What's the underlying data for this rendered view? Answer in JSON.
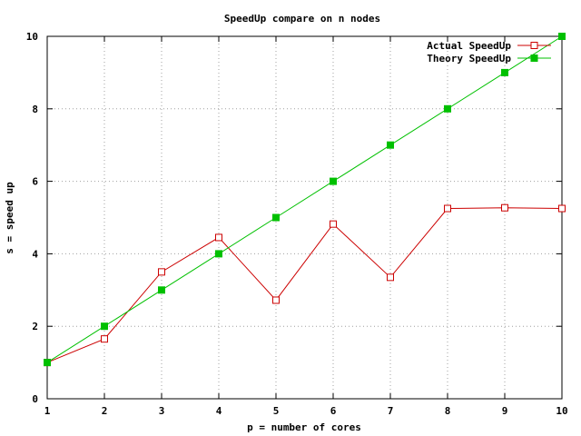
{
  "chart_data": {
    "type": "line",
    "title": "SpeedUp compare on n nodes",
    "xlabel": "p = number of cores",
    "ylabel": "s = speed up",
    "x": [
      1,
      2,
      3,
      4,
      5,
      6,
      7,
      8,
      9,
      10
    ],
    "xlim": [
      1,
      10
    ],
    "ylim": [
      0,
      10
    ],
    "x_ticks": [
      1,
      2,
      3,
      4,
      5,
      6,
      7,
      8,
      9,
      10
    ],
    "y_ticks": [
      0,
      2,
      4,
      6,
      8,
      10
    ],
    "grid": true,
    "legend_position": "top-right",
    "series": [
      {
        "name": "Actual SpeedUp",
        "color": "#cc0000",
        "marker": "open-square",
        "values": [
          1.0,
          1.65,
          3.5,
          4.45,
          2.72,
          4.82,
          3.35,
          5.25,
          5.27,
          5.25
        ]
      },
      {
        "name": "Theory SpeedUp",
        "color": "#00c000",
        "marker": "filled-square",
        "values": [
          1,
          2,
          3,
          4,
          5,
          6,
          7,
          8,
          9,
          10
        ]
      }
    ]
  }
}
